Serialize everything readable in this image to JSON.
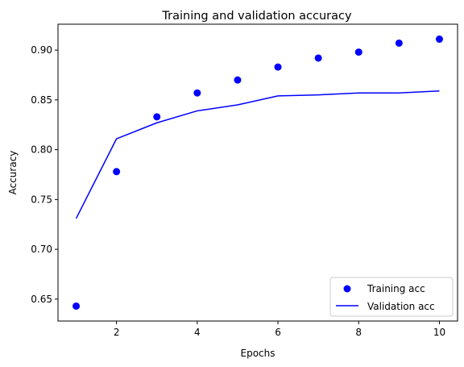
{
  "chart_data": {
    "type": "line",
    "title": "Training and validation accuracy",
    "xlabel": "Epochs",
    "ylabel": "Accuracy",
    "xlim": [
      0.55,
      10.45
    ],
    "ylim": [
      0.628,
      0.926
    ],
    "xticks": [
      2,
      4,
      6,
      8,
      10
    ],
    "yticks": [
      0.65,
      0.7,
      0.75,
      0.8,
      0.85,
      0.9
    ],
    "ytick_labels": [
      "0.65",
      "0.70",
      "0.75",
      "0.80",
      "0.85",
      "0.90"
    ],
    "grid": false,
    "legend_position": "lower-right",
    "x": [
      1,
      2,
      3,
      4,
      5,
      6,
      7,
      8,
      9,
      10
    ],
    "series": [
      {
        "name": "Training acc",
        "style": "points",
        "color": "#0000ff",
        "values": [
          0.643,
          0.778,
          0.833,
          0.857,
          0.87,
          0.883,
          0.892,
          0.898,
          0.907,
          0.911
        ]
      },
      {
        "name": "Validation acc",
        "style": "line",
        "color": "#0000ff",
        "values": [
          0.731,
          0.811,
          0.827,
          0.839,
          0.845,
          0.854,
          0.855,
          0.857,
          0.857,
          0.859
        ]
      }
    ]
  }
}
